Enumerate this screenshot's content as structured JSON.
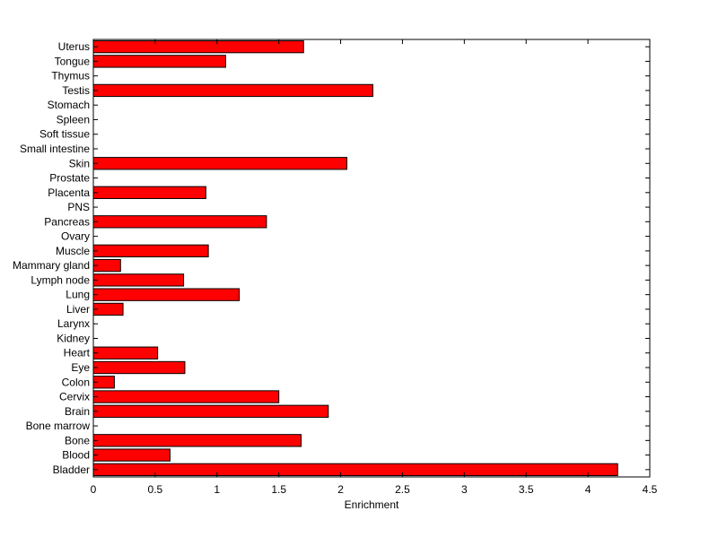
{
  "chart_data": {
    "type": "bar",
    "orientation": "horizontal",
    "title": "",
    "xlabel": "Enrichment",
    "ylabel": "",
    "xlim": [
      0,
      4.5
    ],
    "xticks": [
      0,
      0.5,
      1,
      1.5,
      2,
      2.5,
      3,
      3.5,
      4,
      4.5
    ],
    "xtick_labels": [
      "0",
      "0.5",
      "1",
      "1.5",
      "2",
      "2.5",
      "3",
      "3.5",
      "4",
      "4.5"
    ],
    "grid": false,
    "legend": "none",
    "bar_color": "#ff0000",
    "bar_edge_color": "#000000",
    "categories": [
      "Bladder",
      "Blood",
      "Bone",
      "Bone marrow",
      "Brain",
      "Cervix",
      "Colon",
      "Eye",
      "Heart",
      "Kidney",
      "Larynx",
      "Liver",
      "Lung",
      "Lymph node",
      "Mammary gland",
      "Muscle",
      "Ovary",
      "Pancreas",
      "PNS",
      "Placenta",
      "Prostate",
      "Skin",
      "Small intestine",
      "Soft tissue",
      "Spleen",
      "Stomach",
      "Testis",
      "Thymus",
      "Tongue",
      "Uterus"
    ],
    "values": [
      4.24,
      0.62,
      1.68,
      0,
      1.9,
      1.5,
      0.17,
      0.74,
      0.52,
      0,
      0,
      0.24,
      1.18,
      0.73,
      0.22,
      0.93,
      0,
      1.4,
      0,
      0.91,
      0,
      2.05,
      0,
      0,
      0,
      0,
      2.26,
      0,
      1.07,
      1.7
    ]
  }
}
